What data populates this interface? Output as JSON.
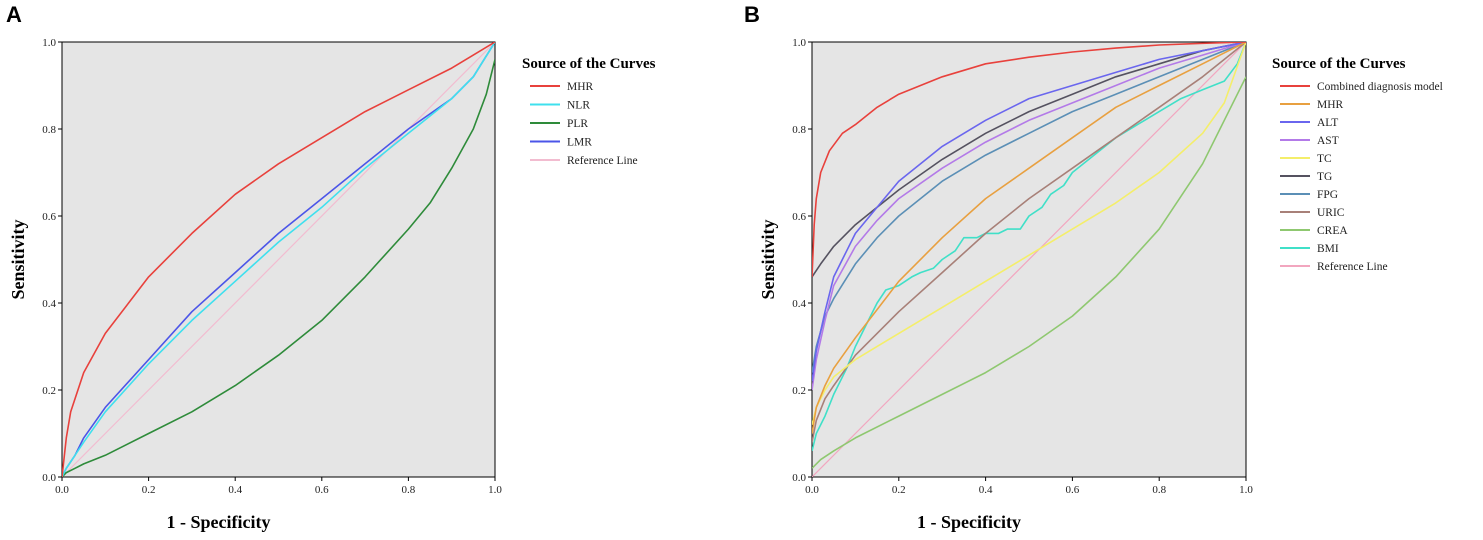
{
  "chart_data": [
    {
      "panel": "A",
      "type": "line",
      "title": "",
      "xlabel": "1 - Specificity",
      "ylabel": "Sensitivity",
      "xlim": [
        0,
        1
      ],
      "ylim": [
        0,
        1
      ],
      "ticks": [
        "0.0",
        "0.2",
        "0.4",
        "0.6",
        "0.8",
        "1.0"
      ],
      "grid": false,
      "legend_title": "Source of the Curves",
      "legend_position": "right",
      "series": [
        {
          "name": "MHR",
          "color": "#e8413c",
          "x": [
            0,
            0.01,
            0.02,
            0.05,
            0.1,
            0.2,
            0.3,
            0.4,
            0.5,
            0.6,
            0.7,
            0.8,
            0.9,
            0.95,
            1.0
          ],
          "y": [
            0,
            0.09,
            0.15,
            0.24,
            0.33,
            0.46,
            0.56,
            0.65,
            0.72,
            0.78,
            0.84,
            0.89,
            0.94,
            0.97,
            1.0
          ]
        },
        {
          "name": "NLR",
          "color": "#3fe0ee",
          "x": [
            0,
            0.01,
            0.03,
            0.05,
            0.1,
            0.2,
            0.3,
            0.4,
            0.5,
            0.6,
            0.7,
            0.8,
            0.9,
            0.95,
            1.0
          ],
          "y": [
            0,
            0.02,
            0.05,
            0.08,
            0.15,
            0.26,
            0.36,
            0.45,
            0.54,
            0.62,
            0.71,
            0.79,
            0.87,
            0.92,
            1.0
          ]
        },
        {
          "name": "PLR",
          "color": "#2e8b3a",
          "x": [
            0,
            0.01,
            0.03,
            0.05,
            0.1,
            0.2,
            0.3,
            0.4,
            0.5,
            0.6,
            0.7,
            0.8,
            0.85,
            0.9,
            0.95,
            0.98,
            1.0
          ],
          "y": [
            0,
            0.01,
            0.02,
            0.03,
            0.05,
            0.1,
            0.15,
            0.21,
            0.28,
            0.36,
            0.46,
            0.57,
            0.63,
            0.71,
            0.8,
            0.88,
            0.96
          ]
        },
        {
          "name": "LMR",
          "color": "#4b55e8",
          "x": [
            0,
            0.01,
            0.03,
            0.05,
            0.1,
            0.2,
            0.3,
            0.4,
            0.5,
            0.6,
            0.7,
            0.8,
            0.9,
            0.95,
            1.0
          ],
          "y": [
            0,
            0.02,
            0.05,
            0.09,
            0.16,
            0.27,
            0.38,
            0.47,
            0.56,
            0.64,
            0.72,
            0.8,
            0.87,
            0.92,
            1.0
          ]
        },
        {
          "name": "Reference Line",
          "color": "#f2bcd0",
          "x": [
            0,
            1
          ],
          "y": [
            0,
            1
          ]
        }
      ]
    },
    {
      "panel": "B",
      "type": "line",
      "title": "",
      "xlabel": "1 - Specificity",
      "ylabel": "Sensitivity",
      "xlim": [
        0,
        1
      ],
      "ylim": [
        0,
        1
      ],
      "ticks": [
        "0.0",
        "0.2",
        "0.4",
        "0.6",
        "0.8",
        "1.0"
      ],
      "grid": false,
      "legend_title": "Source of the Curves",
      "legend_position": "right",
      "series": [
        {
          "name": "Combined diagnosis model",
          "color": "#e8413c",
          "x": [
            0,
            0.005,
            0.01,
            0.02,
            0.04,
            0.07,
            0.1,
            0.15,
            0.2,
            0.3,
            0.4,
            0.5,
            0.6,
            0.7,
            0.8,
            0.9,
            1.0
          ],
          "y": [
            0.46,
            0.58,
            0.64,
            0.7,
            0.75,
            0.79,
            0.81,
            0.85,
            0.88,
            0.92,
            0.95,
            0.965,
            0.977,
            0.986,
            0.993,
            0.997,
            1.0
          ]
        },
        {
          "name": "MHR",
          "color": "#e8a040",
          "x": [
            0,
            0.01,
            0.03,
            0.05,
            0.1,
            0.2,
            0.3,
            0.4,
            0.5,
            0.6,
            0.7,
            0.8,
            0.9,
            1.0
          ],
          "y": [
            0.1,
            0.16,
            0.21,
            0.25,
            0.32,
            0.45,
            0.55,
            0.64,
            0.71,
            0.78,
            0.85,
            0.9,
            0.95,
            1.0
          ]
        },
        {
          "name": "ALT",
          "color": "#6a66ee",
          "x": [
            0,
            0.01,
            0.03,
            0.05,
            0.08,
            0.1,
            0.15,
            0.2,
            0.3,
            0.4,
            0.5,
            0.6,
            0.7,
            0.8,
            0.9,
            1.0
          ],
          "y": [
            0.22,
            0.29,
            0.38,
            0.46,
            0.52,
            0.56,
            0.62,
            0.68,
            0.76,
            0.82,
            0.87,
            0.9,
            0.93,
            0.96,
            0.98,
            1.0
          ]
        },
        {
          "name": "AST",
          "color": "#b37ae8",
          "x": [
            0,
            0.01,
            0.03,
            0.05,
            0.1,
            0.15,
            0.2,
            0.3,
            0.4,
            0.5,
            0.6,
            0.7,
            0.8,
            0.9,
            1.0
          ],
          "y": [
            0.2,
            0.27,
            0.36,
            0.44,
            0.53,
            0.59,
            0.64,
            0.71,
            0.77,
            0.82,
            0.86,
            0.9,
            0.94,
            0.97,
            1.0
          ]
        },
        {
          "name": "TC",
          "color": "#f4ee6a",
          "x": [
            0,
            0.01,
            0.03,
            0.05,
            0.1,
            0.2,
            0.3,
            0.4,
            0.5,
            0.6,
            0.7,
            0.8,
            0.9,
            0.95,
            1.0
          ],
          "y": [
            0.12,
            0.16,
            0.2,
            0.23,
            0.27,
            0.33,
            0.39,
            0.45,
            0.51,
            0.57,
            0.63,
            0.7,
            0.79,
            0.86,
            1.0
          ]
        },
        {
          "name": "TG",
          "color": "#555260",
          "x": [
            0,
            0.02,
            0.05,
            0.1,
            0.15,
            0.2,
            0.3,
            0.4,
            0.5,
            0.6,
            0.7,
            0.8,
            0.9,
            1.0
          ],
          "y": [
            0.46,
            0.49,
            0.53,
            0.58,
            0.62,
            0.66,
            0.73,
            0.79,
            0.84,
            0.88,
            0.92,
            0.95,
            0.98,
            1.0
          ]
        },
        {
          "name": "FPG",
          "color": "#5b8fb6",
          "x": [
            0,
            0.01,
            0.03,
            0.05,
            0.1,
            0.15,
            0.2,
            0.3,
            0.4,
            0.5,
            0.6,
            0.7,
            0.8,
            0.9,
            1.0
          ],
          "y": [
            0.24,
            0.3,
            0.37,
            0.41,
            0.49,
            0.55,
            0.6,
            0.68,
            0.74,
            0.79,
            0.84,
            0.88,
            0.92,
            0.96,
            1.0
          ]
        },
        {
          "name": "URIC",
          "color": "#a88078",
          "x": [
            0,
            0.01,
            0.03,
            0.05,
            0.1,
            0.2,
            0.3,
            0.4,
            0.5,
            0.6,
            0.7,
            0.8,
            0.9,
            1.0
          ],
          "y": [
            0.08,
            0.13,
            0.18,
            0.21,
            0.28,
            0.38,
            0.47,
            0.56,
            0.64,
            0.71,
            0.78,
            0.85,
            0.92,
            1.0
          ]
        },
        {
          "name": "CREA",
          "color": "#8fc870",
          "x": [
            0,
            0.02,
            0.05,
            0.1,
            0.2,
            0.3,
            0.4,
            0.5,
            0.6,
            0.7,
            0.8,
            0.9,
            0.95,
            1.0
          ],
          "y": [
            0.02,
            0.04,
            0.06,
            0.09,
            0.14,
            0.19,
            0.24,
            0.3,
            0.37,
            0.46,
            0.57,
            0.72,
            0.82,
            0.92
          ]
        },
        {
          "name": "BMI",
          "color": "#40e0c8",
          "x": [
            0,
            0.01,
            0.03,
            0.05,
            0.08,
            0.1,
            0.13,
            0.15,
            0.17,
            0.2,
            0.23,
            0.25,
            0.28,
            0.3,
            0.33,
            0.35,
            0.38,
            0.4,
            0.43,
            0.45,
            0.48,
            0.5,
            0.53,
            0.55,
            0.58,
            0.6,
            0.65,
            0.7,
            0.75,
            0.8,
            0.85,
            0.9,
            0.95,
            0.98,
            1.0
          ],
          "y": [
            0.06,
            0.1,
            0.14,
            0.19,
            0.25,
            0.3,
            0.36,
            0.4,
            0.43,
            0.44,
            0.46,
            0.47,
            0.48,
            0.5,
            0.52,
            0.55,
            0.55,
            0.56,
            0.56,
            0.57,
            0.57,
            0.6,
            0.62,
            0.65,
            0.67,
            0.7,
            0.74,
            0.78,
            0.81,
            0.84,
            0.87,
            0.89,
            0.91,
            0.95,
            1.0
          ]
        },
        {
          "name": "Reference Line",
          "color": "#f2a6bf",
          "x": [
            0,
            1
          ],
          "y": [
            0,
            1
          ]
        }
      ]
    }
  ]
}
